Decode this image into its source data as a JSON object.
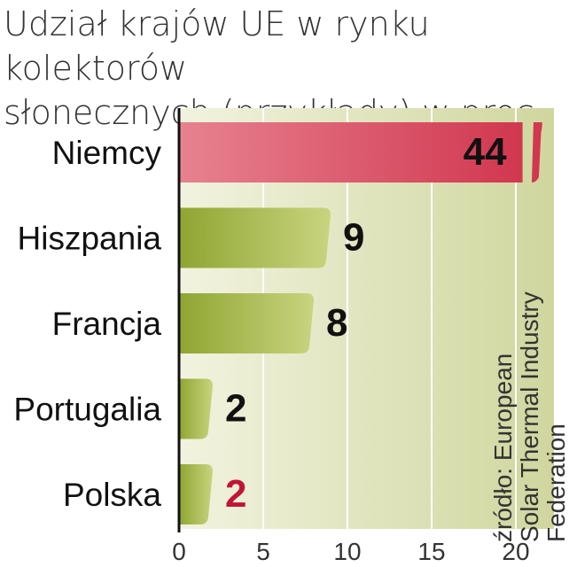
{
  "title_line1": "Udział krajów UE w rynku kolektorów",
  "title_line2": "słonecznych (przykłady) w proc.",
  "source_line1": "źródło: European",
  "source_line2": "Solar Thermal Industry",
  "source_line3": "Federation",
  "colors": {
    "highlight_bar": "#d1374f",
    "bar_light": "#c9d47f",
    "bar_dark": "#8fa532",
    "highlight_value": "#c01535",
    "value_text": "#111111",
    "plot_bg_left": "#f2f3df",
    "plot_bg_right": "#d0d69e"
  },
  "chart_data": {
    "type": "bar",
    "orientation": "horizontal",
    "categories": [
      "Niemcy",
      "Hiszpania",
      "Francja",
      "Portugalia",
      "Polska"
    ],
    "values": [
      44,
      9,
      8,
      2,
      2
    ],
    "value_labels": [
      "44",
      "9",
      "8",
      "2",
      "2"
    ],
    "highlight": [
      true,
      false,
      false,
      false,
      false
    ],
    "highlight_value": [
      false,
      false,
      false,
      false,
      true
    ],
    "xlim": [
      0,
      22
    ],
    "xticks": [
      0,
      5,
      10,
      15,
      20
    ],
    "xtick_labels": [
      "0",
      "5",
      "10",
      "15",
      "20"
    ],
    "axis_break": true,
    "grid": true,
    "title": "Udział krajów UE w rynku kolektorów słonecznych (przykłady) w proc."
  }
}
